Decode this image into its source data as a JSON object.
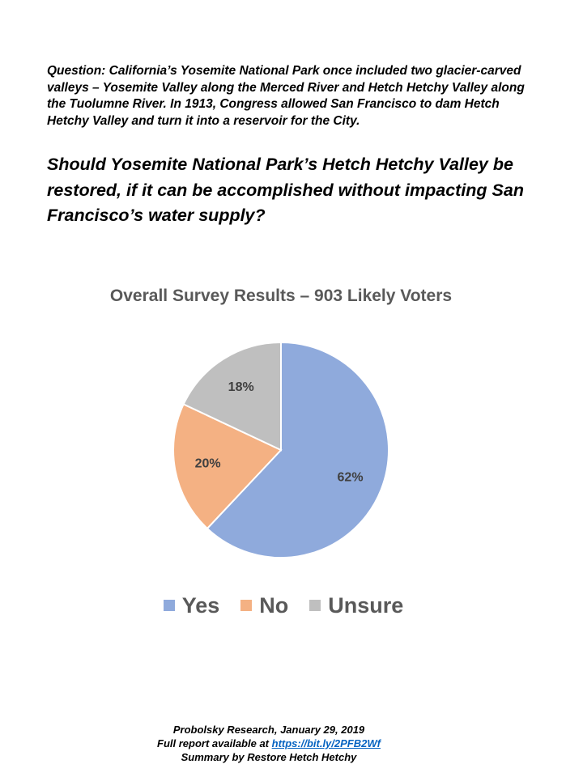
{
  "question": "Question: California’s Yosemite National Park once included two glacier-carved valleys – Yosemite Valley along the Merced River and Hetch Hetchy Valley along the Tuolumne River. In 1913, Congress allowed San Francisco to dam Hetch Hetchy Valley and turn it into a reservoir for the City.",
  "headline": "Should Yosemite National Park’s Hetch Hetchy Valley be restored, if it can be accomplished without impacting San Francisco’s water supply?",
  "chart_data": {
    "type": "pie",
    "title": "Overall Survey Results – 903 Likely Voters",
    "categories": [
      "Yes",
      "No",
      "Unsure"
    ],
    "values": [
      62,
      20,
      18
    ],
    "data_labels": [
      "62%",
      "20%",
      "18%"
    ],
    "colors": [
      "#8faadc",
      "#f4b183",
      "#bfbfbf"
    ],
    "label_color": "#404040",
    "legend_position": "bottom",
    "start": "12 o'clock",
    "direction": "clockwise"
  },
  "footer": {
    "line1": "Probolsky Research, January 29, 2019",
    "line2_prefix": "Full report available at ",
    "link_text": "https://bit.ly/2PFB2Wf",
    "line3": "Summary by Restore Hetch Hetchy"
  }
}
